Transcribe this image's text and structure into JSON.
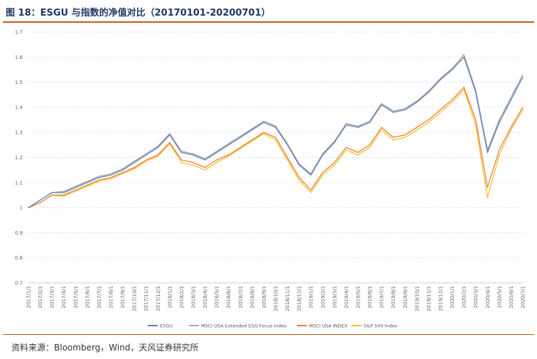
{
  "figure": {
    "title": "图 18：ESGU 与指数的净值对比（20170101-20200701）",
    "source": "资料来源：Bloomberg，Wind，天风证券研究所"
  },
  "colors": {
    "ESGU": "#5b7fb0",
    "MSCI USA Extended ESG Focus Index": "#a6a6a6",
    "MSCI USA INDEX": "#ed7d31",
    "S&P 500 Index": "#f2c12e",
    "accent_rule": "#c55a11",
    "title_color": "#1f3864"
  },
  "chart_data": {
    "type": "line",
    "title": "",
    "xlabel": "",
    "ylabel": "",
    "ylim": [
      0.7,
      1.7
    ],
    "yticks": [
      "0.7",
      "0.8",
      "0.9",
      "1",
      "1.1",
      "1.2",
      "1.3",
      "1.4",
      "1.5",
      "1.6",
      "1.7"
    ],
    "xticks": [
      "2017/1/1",
      "2017/2/1",
      "2017/3/1",
      "2017/4/1",
      "2017/5/1",
      "2017/6/1",
      "2017/7/1",
      "2017/8/1",
      "2017/9/1",
      "2017/10/1",
      "2017/11/1",
      "2017/12/1",
      "2018/1/1",
      "2018/2/1",
      "2018/3/1",
      "2018/4/1",
      "2018/5/1",
      "2018/6/1",
      "2018/7/1",
      "2018/8/1",
      "2018/9/1",
      "2018/10/1",
      "2018/11/1",
      "2018/12/1",
      "2019/1/1",
      "2019/2/1",
      "2019/3/1",
      "2019/4/1",
      "2019/5/1",
      "2019/6/1",
      "2019/7/1",
      "2019/8/1",
      "2019/9/1",
      "2019/10/1",
      "2019/11/1",
      "2019/12/1",
      "2020/1/1",
      "2020/2/1",
      "2020/3/1",
      "2020/4/1",
      "2020/5/1",
      "2020/6/1",
      "2020/7/1"
    ],
    "grid": true,
    "legend_position": "bottom",
    "series": [
      {
        "name": "ESGU",
        "x": [
          "2017/1/1",
          "2017/2/1",
          "2017/3/1",
          "2017/4/1",
          "2017/5/1",
          "2017/6/1",
          "2017/7/1",
          "2017/8/1",
          "2017/9/1",
          "2017/10/1",
          "2017/11/1",
          "2017/12/1",
          "2018/1/1",
          "2018/2/1",
          "2018/3/1",
          "2018/4/1",
          "2018/5/1",
          "2018/6/1",
          "2018/7/1",
          "2018/8/1",
          "2018/9/1",
          "2018/10/1",
          "2018/11/1",
          "2018/12/1",
          "2019/1/1",
          "2019/2/1",
          "2019/3/1",
          "2019/4/1",
          "2019/5/1",
          "2019/6/1",
          "2019/7/1",
          "2019/8/1",
          "2019/9/1",
          "2019/10/1",
          "2019/11/1",
          "2019/12/1",
          "2020/1/1",
          "2020/2/1",
          "2020/3/1",
          "2020/4/1",
          "2020/5/1",
          "2020/6/1",
          "2020/7/1"
        ],
        "values": [
          1.0,
          1.03,
          1.06,
          1.06,
          1.08,
          1.1,
          1.12,
          1.13,
          1.15,
          1.18,
          1.21,
          1.24,
          1.29,
          1.22,
          1.21,
          1.19,
          1.22,
          1.25,
          1.28,
          1.31,
          1.34,
          1.32,
          1.25,
          1.17,
          1.13,
          1.21,
          1.26,
          1.33,
          1.32,
          1.34,
          1.41,
          1.38,
          1.39,
          1.42,
          1.46,
          1.51,
          1.55,
          1.6,
          1.46,
          1.22,
          1.34,
          1.43,
          1.52
        ]
      },
      {
        "name": "MSCI USA Extended ESG Focus Index",
        "x": [
          "2017/1/1",
          "2017/2/1",
          "2017/3/1",
          "2017/4/1",
          "2017/5/1",
          "2017/6/1",
          "2017/7/1",
          "2017/8/1",
          "2017/9/1",
          "2017/10/1",
          "2017/11/1",
          "2017/12/1",
          "2018/1/1",
          "2018/2/1",
          "2018/3/1",
          "2018/4/1",
          "2018/5/1",
          "2018/6/1",
          "2018/7/1",
          "2018/8/1",
          "2018/9/1",
          "2018/10/1",
          "2018/11/1",
          "2018/12/1",
          "2019/1/1",
          "2019/2/1",
          "2019/3/1",
          "2019/4/1",
          "2019/5/1",
          "2019/6/1",
          "2019/7/1",
          "2019/8/1",
          "2019/9/1",
          "2019/10/1",
          "2019/11/1",
          "2019/12/1",
          "2020/1/1",
          "2020/2/1",
          "2020/3/1",
          "2020/4/1",
          "2020/5/1",
          "2020/6/1",
          "2020/7/1"
        ],
        "values": [
          1.0,
          1.03,
          1.06,
          1.065,
          1.085,
          1.105,
          1.125,
          1.135,
          1.155,
          1.185,
          1.215,
          1.245,
          1.295,
          1.225,
          1.215,
          1.195,
          1.225,
          1.255,
          1.285,
          1.315,
          1.345,
          1.325,
          1.255,
          1.175,
          1.135,
          1.215,
          1.265,
          1.335,
          1.325,
          1.345,
          1.415,
          1.385,
          1.395,
          1.425,
          1.465,
          1.515,
          1.555,
          1.61,
          1.47,
          1.23,
          1.35,
          1.44,
          1.53
        ]
      },
      {
        "name": "MSCI USA INDEX",
        "x": [
          "2017/1/1",
          "2017/2/1",
          "2017/3/1",
          "2017/4/1",
          "2017/5/1",
          "2017/6/1",
          "2017/7/1",
          "2017/8/1",
          "2017/9/1",
          "2017/10/1",
          "2017/11/1",
          "2017/12/1",
          "2018/1/1",
          "2018/2/1",
          "2018/3/1",
          "2018/4/1",
          "2018/5/1",
          "2018/6/1",
          "2018/7/1",
          "2018/8/1",
          "2018/9/1",
          "2018/10/1",
          "2018/11/1",
          "2018/12/1",
          "2019/1/1",
          "2019/2/1",
          "2019/3/1",
          "2019/4/1",
          "2019/5/1",
          "2019/6/1",
          "2019/7/1",
          "2019/8/1",
          "2019/9/1",
          "2019/10/1",
          "2019/11/1",
          "2019/12/1",
          "2020/1/1",
          "2020/2/1",
          "2020/3/1",
          "2020/4/1",
          "2020/5/1",
          "2020/6/1",
          "2020/7/1"
        ],
        "values": [
          1.0,
          1.02,
          1.05,
          1.05,
          1.07,
          1.09,
          1.11,
          1.12,
          1.14,
          1.16,
          1.19,
          1.21,
          1.26,
          1.19,
          1.18,
          1.16,
          1.19,
          1.21,
          1.24,
          1.27,
          1.3,
          1.28,
          1.2,
          1.12,
          1.07,
          1.14,
          1.18,
          1.24,
          1.22,
          1.25,
          1.32,
          1.28,
          1.29,
          1.32,
          1.35,
          1.39,
          1.43,
          1.48,
          1.35,
          1.08,
          1.23,
          1.32,
          1.4
        ]
      },
      {
        "name": "S&P 500 Index",
        "x": [
          "2017/1/1",
          "2017/2/1",
          "2017/3/1",
          "2017/4/1",
          "2017/5/1",
          "2017/6/1",
          "2017/7/1",
          "2017/8/1",
          "2017/9/1",
          "2017/10/1",
          "2017/11/1",
          "2017/12/1",
          "2018/1/1",
          "2018/2/1",
          "2018/3/1",
          "2018/4/1",
          "2018/5/1",
          "2018/6/1",
          "2018/7/1",
          "2018/8/1",
          "2018/9/1",
          "2018/10/1",
          "2018/11/1",
          "2018/12/1",
          "2019/1/1",
          "2019/2/1",
          "2019/3/1",
          "2019/4/1",
          "2019/5/1",
          "2019/6/1",
          "2019/7/1",
          "2019/8/1",
          "2019/9/1",
          "2019/10/1",
          "2019/11/1",
          "2019/12/1",
          "2020/1/1",
          "2020/2/1",
          "2020/3/1",
          "2020/4/1",
          "2020/5/1",
          "2020/6/1",
          "2020/7/1"
        ],
        "values": [
          1.0,
          1.02,
          1.05,
          1.045,
          1.065,
          1.085,
          1.105,
          1.115,
          1.135,
          1.155,
          1.185,
          1.205,
          1.255,
          1.18,
          1.17,
          1.15,
          1.18,
          1.205,
          1.235,
          1.265,
          1.295,
          1.27,
          1.19,
          1.11,
          1.06,
          1.13,
          1.17,
          1.23,
          1.21,
          1.24,
          1.31,
          1.27,
          1.28,
          1.31,
          1.34,
          1.38,
          1.42,
          1.47,
          1.33,
          1.04,
          1.21,
          1.31,
          1.39
        ]
      }
    ]
  }
}
